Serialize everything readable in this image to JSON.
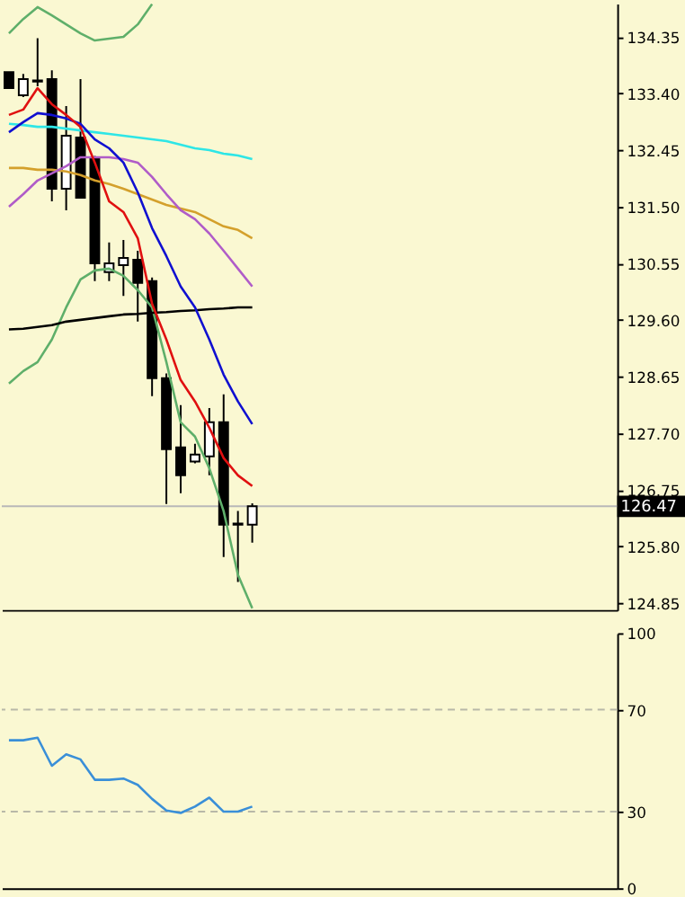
{
  "chart_data": [
    {
      "type": "candlestick",
      "categories": [
        null,
        null,
        null,
        null,
        null,
        null,
        null,
        null,
        null,
        null,
        null,
        null,
        null,
        null,
        null,
        null,
        null,
        null,
        null,
        null,
        null,
        null,
        null,
        null,
        null,
        null,
        null,
        null,
        null,
        null,
        null,
        null,
        null,
        null,
        null,
        null,
        null,
        null,
        null,
        null,
        null,
        null,
        null
      ],
      "ohlc": [
        [
          133.76,
          133.76,
          133.49,
          133.49
        ],
        [
          133.37,
          133.73,
          133.34,
          133.64
        ],
        [
          133.6,
          134.33,
          133.52,
          133.62
        ],
        [
          133.64,
          133.79,
          131.59,
          131.8
        ],
        [
          131.8,
          133.19,
          131.44,
          132.69
        ],
        [
          132.66,
          133.64,
          131.65,
          131.65
        ],
        [
          132.3,
          132.35,
          130.25,
          130.55
        ],
        [
          130.4,
          130.9,
          130.25,
          130.55
        ],
        [
          130.52,
          130.94,
          130.0,
          130.64
        ],
        [
          130.61,
          130.76,
          129.57,
          130.22
        ],
        [
          130.25,
          130.31,
          128.32,
          128.62
        ],
        [
          128.62,
          128.7,
          126.51,
          127.43
        ],
        [
          127.46,
          128.17,
          126.69,
          126.99
        ],
        [
          127.22,
          127.52,
          127.19,
          127.34
        ],
        [
          127.31,
          128.12,
          126.99,
          127.88
        ],
        [
          127.88,
          128.35,
          125.62,
          126.16
        ],
        [
          126.16,
          126.39,
          125.2,
          126.18
        ],
        [
          126.16,
          126.52,
          125.86,
          126.47
        ],
        null,
        null,
        null,
        null,
        null,
        null,
        null,
        null,
        null,
        null,
        null,
        null,
        null,
        null,
        null,
        null,
        null,
        null,
        null,
        null,
        null,
        null,
        null,
        null,
        null
      ],
      "series": [
        {
          "type": "line",
          "color": "#5faf6a",
          "values": [
            134.41,
            134.65,
            134.85,
            134.71,
            134.56,
            134.41,
            134.29,
            134.32,
            134.35,
            134.56,
            134.9,
            null,
            null,
            null,
            null,
            null,
            null,
            null,
            null,
            null,
            null,
            null,
            null,
            null,
            null,
            null,
            null,
            null,
            null,
            null,
            null,
            null,
            null,
            null,
            null,
            null,
            null,
            null,
            null,
            null,
            null,
            null,
            null
          ]
        },
        {
          "type": "line",
          "color": "#5faf6a",
          "values": [
            128.53,
            128.74,
            128.89,
            129.27,
            129.81,
            130.28,
            130.43,
            130.46,
            130.34,
            130.1,
            129.81,
            128.89,
            127.88,
            127.64,
            127.11,
            126.39,
            125.32,
            124.76,
            null,
            null,
            null,
            null,
            null,
            null,
            null,
            null,
            null,
            null,
            null,
            null,
            null,
            null,
            null,
            null,
            null,
            null,
            null,
            null,
            null,
            null,
            null,
            null,
            null
          ]
        },
        {
          "type": "line",
          "color": "#000000",
          "values": [
            129.44,
            129.45,
            129.48,
            129.51,
            129.57,
            129.6,
            129.63,
            129.66,
            129.69,
            129.7,
            129.72,
            129.73,
            129.75,
            129.76,
            129.78,
            129.79,
            129.81,
            129.81,
            null,
            null,
            null,
            null,
            null,
            null,
            null,
            null,
            null,
            null,
            null,
            null,
            null,
            null,
            null,
            null,
            null,
            null,
            null,
            null,
            null,
            null,
            null,
            null,
            null
          ]
        },
        {
          "type": "line",
          "color": "#d4a02c",
          "values": [
            132.15,
            132.15,
            132.12,
            132.12,
            132.09,
            132.03,
            131.94,
            131.88,
            131.8,
            131.71,
            131.62,
            131.53,
            131.47,
            131.41,
            131.29,
            131.17,
            131.11,
            130.97,
            null,
            null,
            null,
            null,
            null,
            null,
            null,
            null,
            null,
            null,
            null,
            null,
            null,
            null,
            null,
            null,
            null,
            null,
            null,
            null,
            null,
            null,
            null,
            null,
            null
          ]
        },
        {
          "type": "line",
          "color": "#b05cc8",
          "values": [
            131.5,
            131.71,
            131.94,
            132.06,
            132.18,
            132.33,
            132.33,
            132.33,
            132.3,
            132.24,
            132.0,
            131.71,
            131.44,
            131.29,
            131.05,
            130.76,
            130.46,
            130.16,
            null,
            null,
            null,
            null,
            null,
            null,
            null,
            null,
            null,
            null,
            null,
            null,
            null,
            null,
            null,
            null,
            null,
            null,
            null,
            null,
            null,
            null,
            null,
            null,
            null
          ]
        },
        {
          "type": "line",
          "color": "#2ee6e6",
          "values": [
            132.89,
            132.87,
            132.84,
            132.84,
            132.81,
            132.78,
            132.75,
            132.72,
            132.69,
            132.66,
            132.63,
            132.6,
            132.54,
            132.48,
            132.45,
            132.39,
            132.36,
            132.3,
            null,
            null,
            null,
            null,
            null,
            null,
            null,
            null,
            null,
            null,
            null,
            null,
            null,
            null,
            null,
            null,
            null,
            null,
            null,
            null,
            null,
            null,
            null,
            null,
            null
          ]
        },
        {
          "type": "line",
          "color": "#1010d0",
          "values": [
            132.75,
            132.92,
            133.07,
            133.04,
            132.98,
            132.89,
            132.63,
            132.48,
            132.24,
            131.74,
            131.14,
            130.67,
            130.16,
            129.81,
            129.27,
            128.68,
            128.23,
            127.85,
            null,
            null,
            null,
            null,
            null,
            null,
            null,
            null,
            null,
            null,
            null,
            null,
            null,
            null,
            null,
            null,
            null,
            null,
            null,
            null,
            null,
            null,
            null,
            null,
            null
          ]
        },
        {
          "type": "line",
          "color": "#e01010",
          "values": [
            133.04,
            133.13,
            133.49,
            133.22,
            133.04,
            132.84,
            132.24,
            131.59,
            131.41,
            130.97,
            129.87,
            129.27,
            128.59,
            128.23,
            127.79,
            127.28,
            126.99,
            126.81,
            null,
            null,
            null,
            null,
            null,
            null,
            null,
            null,
            null,
            null,
            null,
            null,
            null,
            null,
            null,
            null,
            null,
            null,
            null,
            null,
            null,
            null,
            null,
            null,
            null
          ]
        }
      ],
      "ylim": [
        124.73,
        134.91
      ],
      "yticks": [
        124.85,
        {
          "value": 125.8,
          "label": "125.80"
        },
        126.75,
        {
          "value": 127.7,
          "label": "127.70"
        },
        128.65,
        {
          "value": 129.6,
          "label": "129.60"
        },
        130.55,
        {
          "value": 131.5,
          "label": "131.50"
        },
        132.45,
        {
          "value": 133.4,
          "label": "133.40"
        },
        134.35
      ],
      "ref_lines": [
        {
          "axis": "y",
          "value": 126.47,
          "label": "126.47",
          "color": "#b8b8b8"
        }
      ],
      "tick_labels": "y"
    },
    {
      "type": "line",
      "categories": [
        null,
        null,
        null,
        null,
        null,
        null,
        null,
        null,
        null,
        null,
        null,
        null,
        null,
        null,
        null,
        null,
        null,
        null,
        null,
        null,
        null,
        null,
        null,
        null,
        null,
        null,
        null,
        null,
        null,
        null,
        null,
        null,
        null,
        null,
        null,
        null,
        null,
        null,
        null,
        null,
        null,
        null,
        null
      ],
      "series": [
        {
          "color": "#3a8fd8",
          "values": [
            58,
            58,
            59,
            48,
            52.5,
            50.5,
            42.5,
            42.5,
            43,
            40.5,
            35,
            30.5,
            29.5,
            32,
            35.5,
            30,
            30,
            32,
            null,
            null,
            null,
            null,
            null,
            null,
            null,
            null,
            null,
            null,
            null,
            null,
            null,
            null,
            null,
            null,
            null,
            null,
            null,
            null,
            null,
            null,
            null,
            null,
            null
          ]
        }
      ],
      "ylim": [
        0,
        100
      ],
      "yticks": [
        0,
        30,
        70,
        100
      ],
      "ref_lines": [
        {
          "axis": "y",
          "value": 30,
          "color": "#b8b8a8",
          "line_style": "dashed"
        },
        {
          "axis": "y",
          "value": 70,
          "color": "#b8b8a8",
          "line_style": "dashed"
        }
      ],
      "tick_labels": "y"
    }
  ]
}
